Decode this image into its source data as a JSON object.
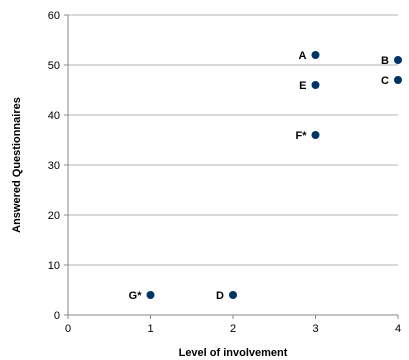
{
  "chart_data": {
    "type": "scatter",
    "title": "",
    "xlabel": "Level of involvement",
    "ylabel": "Answered Questionnaires",
    "xlim": [
      0,
      4
    ],
    "ylim": [
      0,
      60
    ],
    "xticks": [
      0,
      1,
      2,
      3,
      4
    ],
    "yticks": [
      0,
      10,
      20,
      30,
      40,
      50,
      60
    ],
    "grid": "horizontal",
    "legend": "none",
    "marker_color": "#003366",
    "points": [
      {
        "label": "A",
        "x": 3,
        "y": 52
      },
      {
        "label": "B",
        "x": 4,
        "y": 51
      },
      {
        "label": "C",
        "x": 4,
        "y": 47
      },
      {
        "label": "E",
        "x": 3,
        "y": 46
      },
      {
        "label": "F*",
        "x": 3,
        "y": 36
      },
      {
        "label": "G*",
        "x": 1,
        "y": 4
      },
      {
        "label": "D",
        "x": 2,
        "y": 4
      }
    ]
  }
}
